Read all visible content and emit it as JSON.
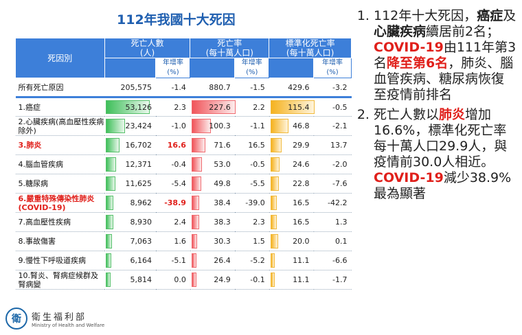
{
  "title": "112年我國十大死因",
  "headers": {
    "cause": "死因別",
    "deaths": "死亡人數\n(人)",
    "rate": "死亡率\n(每十萬人口)",
    "std_rate": "標準化死亡率\n(每十萬人口)",
    "growth": "年增率\n(%)"
  },
  "rows": [
    {
      "cause": "所有死亡原因",
      "deaths": "205,575",
      "deaths_g": "-1.4",
      "rate": "880.7",
      "rate_g": "-1.5",
      "std": "429.6",
      "std_g": "-3.2",
      "highlight": false
    },
    {
      "cause": "1.癌症",
      "deaths": "53,126",
      "deaths_g": "2.3",
      "rate": "227.6",
      "rate_g": "2.2",
      "std": "115.4",
      "std_g": "-0.5",
      "highlight": false
    },
    {
      "cause": "2.心臟疾病(高血壓性疾病除外)",
      "deaths": "23,424",
      "deaths_g": "-1.0",
      "rate": "100.3",
      "rate_g": "-1.1",
      "std": "46.8",
      "std_g": "-2.1",
      "highlight": false
    },
    {
      "cause": "3.肺炎",
      "deaths": "16,702",
      "deaths_g": "16.6",
      "rate": "71.6",
      "rate_g": "16.5",
      "std": "29.9",
      "std_g": "13.7",
      "highlight": true
    },
    {
      "cause": "4.腦血管疾病",
      "deaths": "12,371",
      "deaths_g": "-0.4",
      "rate": "53.0",
      "rate_g": "-0.5",
      "std": "24.6",
      "std_g": "-2.0",
      "highlight": false
    },
    {
      "cause": "5.糖尿病",
      "deaths": "11,625",
      "deaths_g": "-5.4",
      "rate": "49.8",
      "rate_g": "-5.5",
      "std": "22.8",
      "std_g": "-7.6",
      "highlight": false
    },
    {
      "cause": "6.嚴重特殊傳染性肺炎(COVID-19)",
      "deaths": "8,962",
      "deaths_g": "-38.9",
      "rate": "38.4",
      "rate_g": "-39.0",
      "std": "16.5",
      "std_g": "-42.2",
      "highlight": true
    },
    {
      "cause": "7.高血壓性疾病",
      "deaths": "8,930",
      "deaths_g": "2.4",
      "rate": "38.3",
      "rate_g": "2.3",
      "std": "16.5",
      "std_g": "1.3",
      "highlight": false
    },
    {
      "cause": "8.事故傷害",
      "deaths": "7,063",
      "deaths_g": "1.6",
      "rate": "30.3",
      "rate_g": "1.5",
      "std": "20.0",
      "std_g": "0.1",
      "highlight": false
    },
    {
      "cause": "9.慢性下呼吸道疾病",
      "deaths": "6,164",
      "deaths_g": "-5.1",
      "rate": "26.4",
      "rate_g": "-5.2",
      "std": "11.1",
      "std_g": "-6.6",
      "highlight": false
    },
    {
      "cause": "10.腎炎、腎病症候群及腎病變",
      "deaths": "5,814",
      "deaths_g": "0.0",
      "rate": "24.9",
      "rate_g": "-0.1",
      "std": "11.1",
      "std_g": "-1.7",
      "highlight": false
    }
  ],
  "notes": {
    "n1_a": "112年十大死因，",
    "n1_b": "癌症",
    "n1_c": "及",
    "n1_d": "心臟疾病",
    "n1_e": "續居前2名；",
    "n1_f": "COVID-19",
    "n1_g": "由111年第3名",
    "n1_h": "降至第6名",
    "n1_i": "，肺炎、腦血管疾病、糖尿病恢復至疫情前排名",
    "n2_a": "死亡人數以",
    "n2_b": "肺炎",
    "n2_c": "增加16.6%，標準化死亡率每十萬人口29.9人，與疫情前30.0人相近。",
    "n2_d": "COVID-19",
    "n2_e": "減少38.9%最為顯著"
  },
  "logo": {
    "seal": "衛",
    "zh": "衛生福利部",
    "en": "Ministry of Health and Welfare"
  },
  "colors": {
    "header": "#3d7fd9",
    "highlight": "#e0201b",
    "bar_deaths": "#3fbf5a",
    "bar_rate": "#f0545a",
    "bar_std": "#f5b21f"
  }
}
